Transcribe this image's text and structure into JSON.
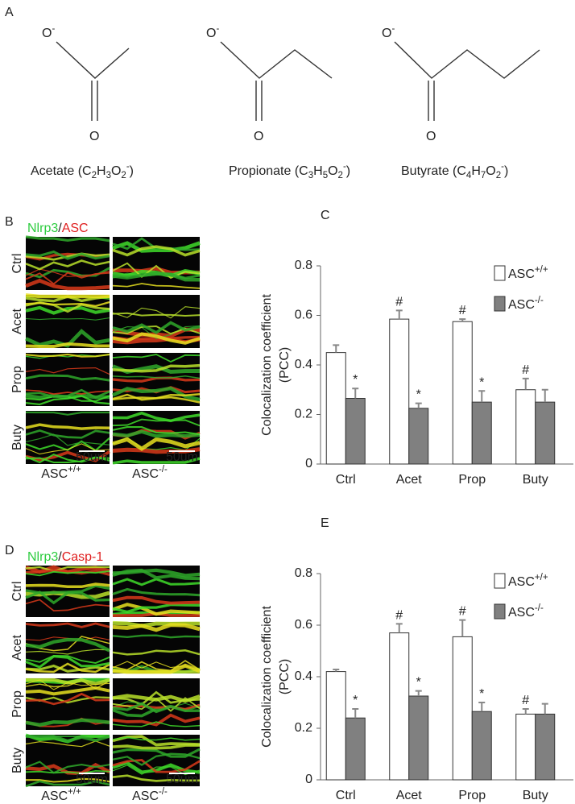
{
  "panel_a": {
    "label": "A",
    "molecules": [
      {
        "name": "Acetate (C2H3O2-)",
        "anion": "O-",
        "carbonyl": "O"
      },
      {
        "name": "Propionate (C3H5O2-)",
        "anion": "O-",
        "carbonyl": "O"
      },
      {
        "name": "Butyrate (C4H7O2-)",
        "anion": "O-",
        "carbonyl": "O"
      }
    ]
  },
  "panel_b": {
    "label": "B",
    "stain": [
      {
        "text": "Nlrp3",
        "color": "#2ecc40"
      },
      {
        "text": "/",
        "color": "#222222"
      },
      {
        "text": "ASC",
        "color": "#e02020"
      }
    ],
    "rows": [
      "Ctrl",
      "Acet",
      "Prop",
      "Buty"
    ],
    "columns": [
      "ASC+/+",
      "ASC-/-"
    ],
    "scale_bar": "50um"
  },
  "panel_d": {
    "label": "D",
    "stain": [
      {
        "text": "Nlrp3",
        "color": "#2ecc40"
      },
      {
        "text": "/",
        "color": "#222222"
      },
      {
        "text": "Casp-1",
        "color": "#e02020"
      }
    ],
    "rows": [
      "Ctrl",
      "Acet",
      "Prop",
      "Buty"
    ],
    "columns": [
      "ASC+/+",
      "ASC-/-"
    ],
    "scale_bar": "50um"
  },
  "chart_data": [
    {
      "type": "bar",
      "panel_label": "C",
      "y_label": [
        "Colocalization coefficient",
        "(PCC)"
      ],
      "categories": [
        "Ctrl",
        "Acet",
        "Prop",
        "Buty"
      ],
      "series": [
        {
          "name": "ASC+/+",
          "color": "#ffffff",
          "values": [
            0.45,
            0.585,
            0.575,
            0.3
          ],
          "errors": [
            0.03,
            0.035,
            0.01,
            0.045
          ],
          "value_annotations": [
            null,
            "#",
            "#",
            "#"
          ]
        },
        {
          "name": "ASC-/-",
          "color": "#808080",
          "values": [
            0.265,
            0.225,
            0.25,
            0.25
          ],
          "errors": [
            0.04,
            0.02,
            0.045,
            0.05
          ],
          "value_annotations": [
            "*",
            "*",
            "*",
            null
          ]
        }
      ],
      "ylim": [
        0,
        0.8
      ],
      "yticks": [
        0,
        0.2,
        0.4,
        0.6,
        0.8
      ],
      "legend": "top-right"
    },
    {
      "type": "bar",
      "panel_label": "E",
      "y_label": [
        "Colocalization coefficient",
        "(PCC)"
      ],
      "categories": [
        "Ctrl",
        "Acet",
        "Prop",
        "Buty"
      ],
      "series": [
        {
          "name": "ASC+/+",
          "color": "#ffffff",
          "values": [
            0.42,
            0.57,
            0.555,
            0.255
          ],
          "errors": [
            0.008,
            0.035,
            0.065,
            0.02
          ],
          "value_annotations": [
            null,
            "#",
            "#",
            "#"
          ]
        },
        {
          "name": "ASC-/-",
          "color": "#808080",
          "values": [
            0.24,
            0.325,
            0.265,
            0.255
          ],
          "errors": [
            0.035,
            0.02,
            0.035,
            0.04
          ],
          "value_annotations": [
            "*",
            "*",
            "*",
            null
          ]
        }
      ],
      "ylim": [
        0,
        0.8
      ],
      "yticks": [
        0,
        0.2,
        0.4,
        0.6,
        0.8
      ],
      "legend": "top-right"
    }
  ]
}
